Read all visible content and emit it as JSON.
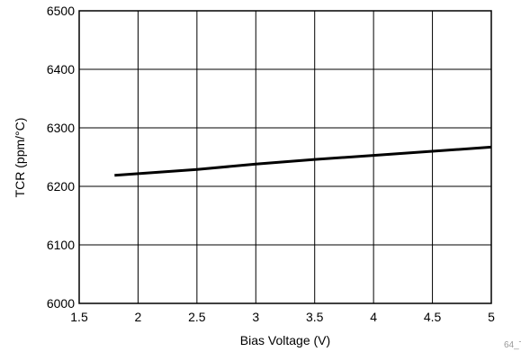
{
  "chart_data": {
    "type": "line",
    "xlabel": "Bias Voltage (V)",
    "ylabel": "TCR (ppm/°C)",
    "xlim": [
      1.5,
      5
    ],
    "ylim": [
      6000,
      6500
    ],
    "x_ticks": [
      1.5,
      2,
      2.5,
      3,
      3.5,
      4,
      4.5,
      5
    ],
    "x_tick_labels": [
      "1.5",
      "2",
      "2.5",
      "3",
      "3.5",
      "4",
      "4.5",
      "5"
    ],
    "y_ticks": [
      6000,
      6100,
      6200,
      6300,
      6400,
      6500
    ],
    "y_tick_labels": [
      "6000",
      "6100",
      "6200",
      "6300",
      "6400",
      "6500"
    ],
    "grid": true,
    "series": [
      {
        "color": "#000000",
        "x": [
          1.8,
          2.5,
          3.0,
          3.5,
          4.0,
          4.5,
          5.0
        ],
        "y": [
          6219,
          6229,
          6238,
          6246,
          6253,
          6260,
          6267
        ]
      }
    ]
  },
  "watermark": "64_T"
}
